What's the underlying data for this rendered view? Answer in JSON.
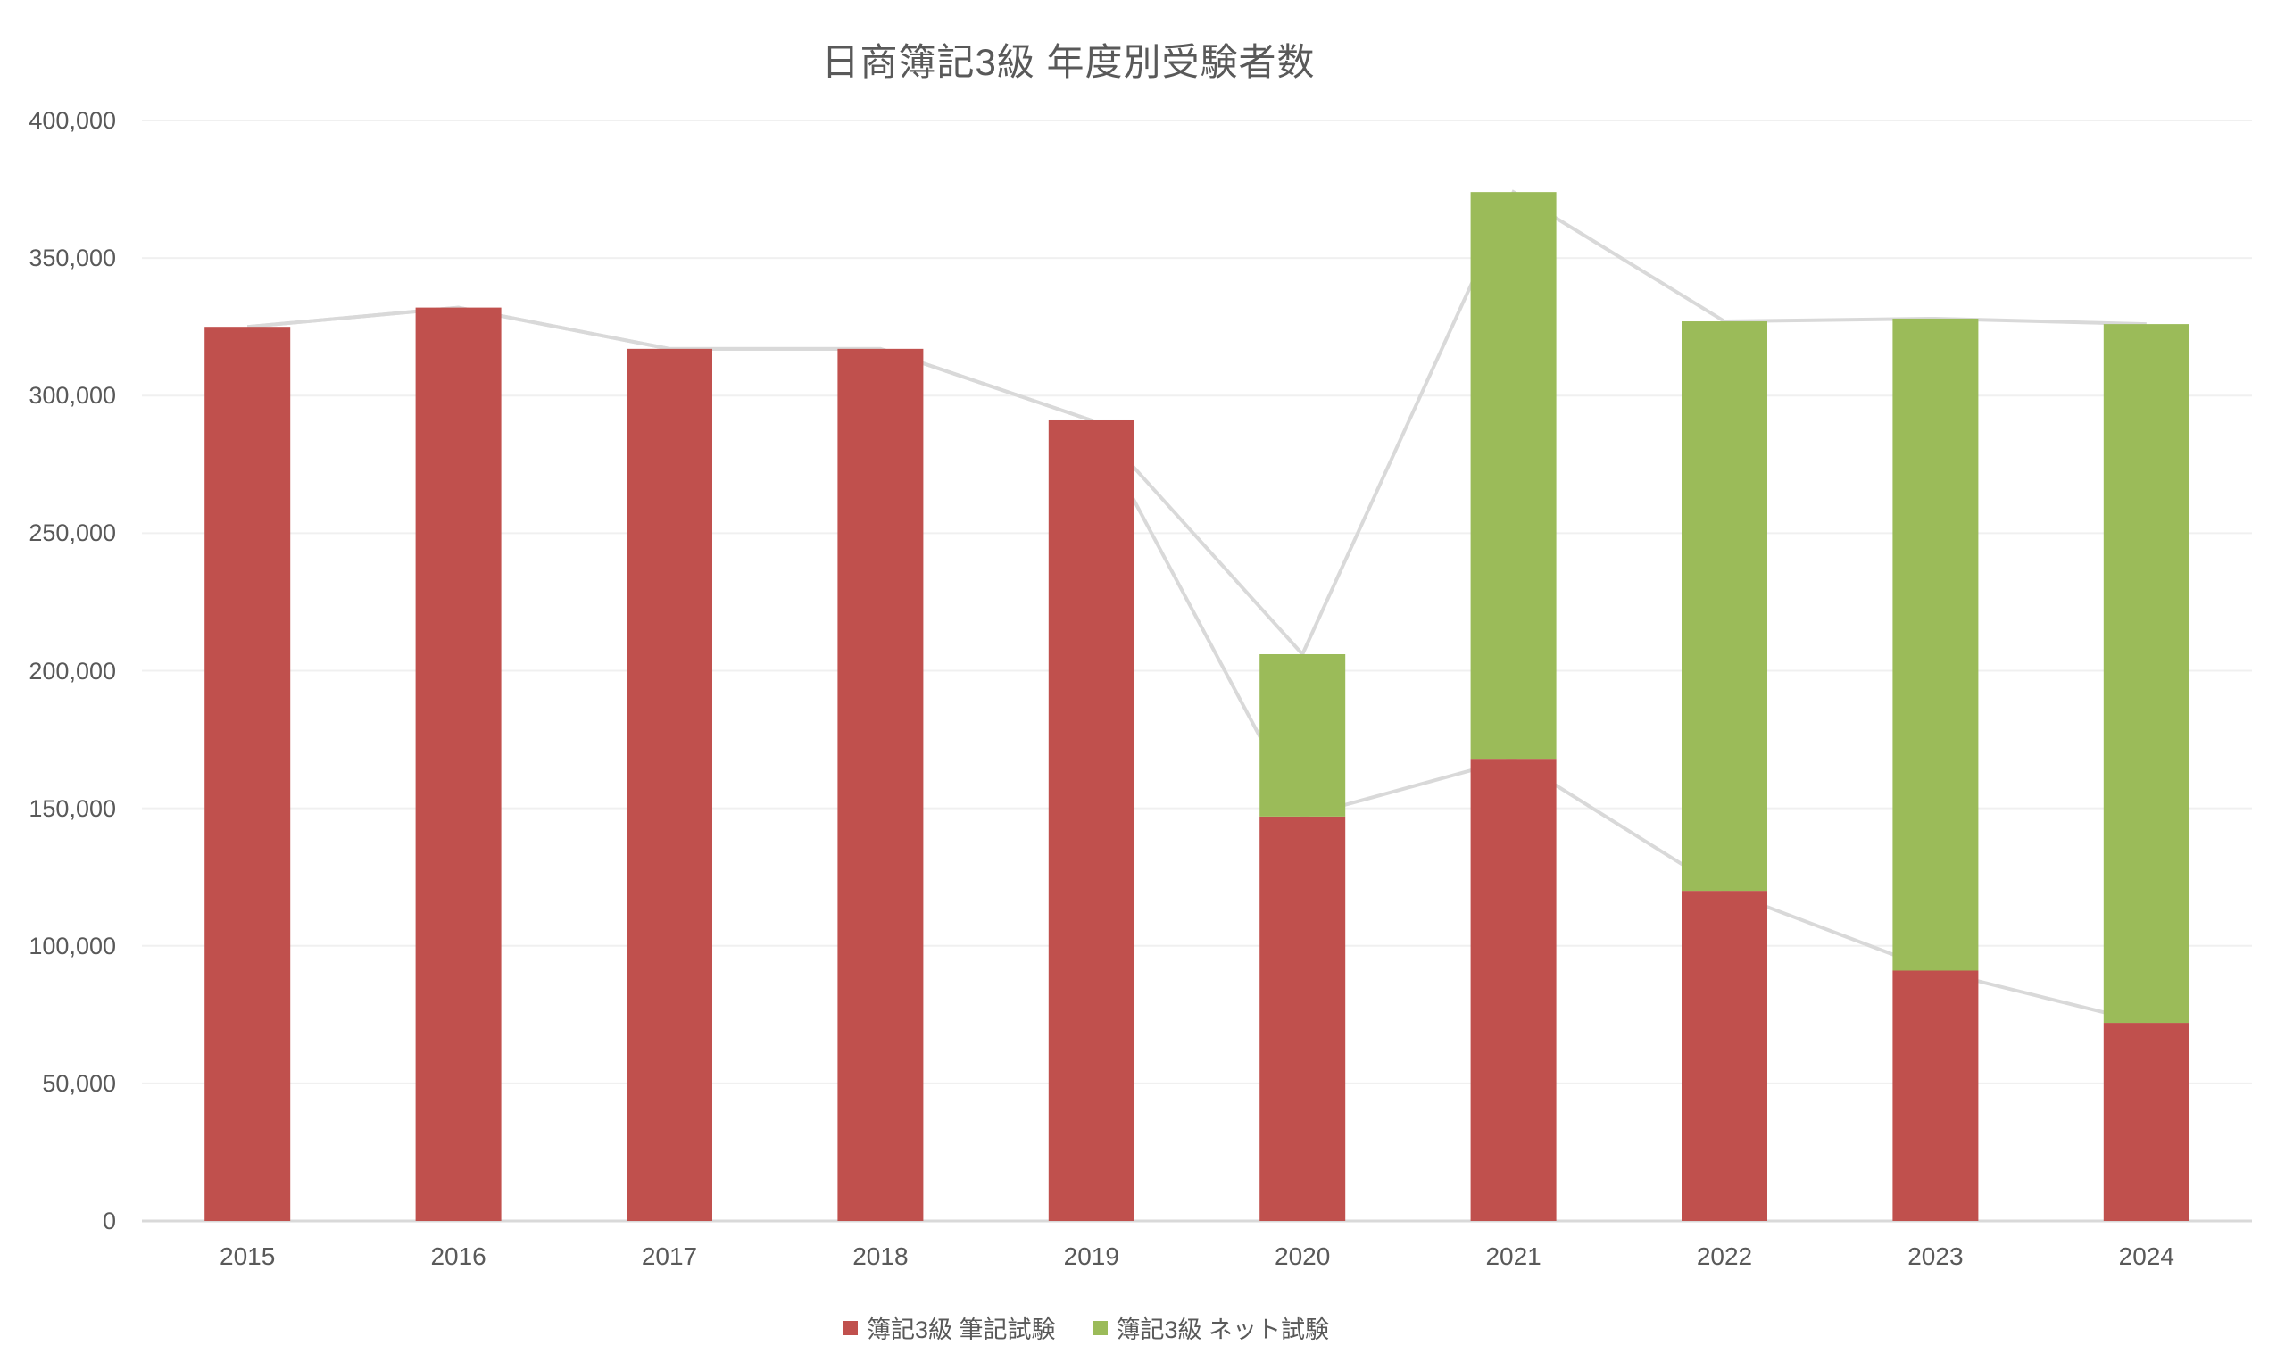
{
  "title": "日商簿記3級 年度別受験者数",
  "colors": {
    "written_series": "#C0504D",
    "net_series": "#9BBB59",
    "text": "#595959",
    "connector_line": "#D9D9D9",
    "gridline": "#F0F0F0",
    "axis_line": "#D9D9D9",
    "background": "#FFFFFF"
  },
  "chart_data": {
    "type": "bar",
    "stacked": true,
    "title": "日商簿記3級 年度別受験者数",
    "xlabel": "",
    "ylabel": "",
    "categories": [
      "2015",
      "2016",
      "2017",
      "2018",
      "2019",
      "2020",
      "2021",
      "2022",
      "2023",
      "2024"
    ],
    "series": [
      {
        "name": "簿記3級 筆記試験",
        "color": "#C0504D",
        "values": [
          325000,
          332000,
          317000,
          317000,
          291000,
          147000,
          168000,
          120000,
          91000,
          72000
        ]
      },
      {
        "name": "簿記3級 ネット試験",
        "color": "#9BBB59",
        "values": [
          0,
          0,
          0,
          0,
          0,
          59000,
          206000,
          207000,
          237000,
          254000
        ]
      }
    ],
    "totals": [
      325000,
      332000,
      317000,
      317000,
      291000,
      206000,
      374000,
      327000,
      328000,
      326000
    ],
    "connector_lines": [
      {
        "name": "totals-connector-line",
        "follows": "totals",
        "color": "#D9D9D9"
      },
      {
        "name": "written-connector-line",
        "follows": "簿記3級 筆記試験",
        "color": "#D9D9D9"
      }
    ],
    "ylim": [
      0,
      400000
    ],
    "y_tick_step": 50000,
    "y_tick_labels": [
      "0",
      "50,000",
      "100,000",
      "150,000",
      "200,000",
      "250,000",
      "300,000",
      "350,000",
      "400,000"
    ],
    "grid": true,
    "legend_position": "bottom"
  }
}
